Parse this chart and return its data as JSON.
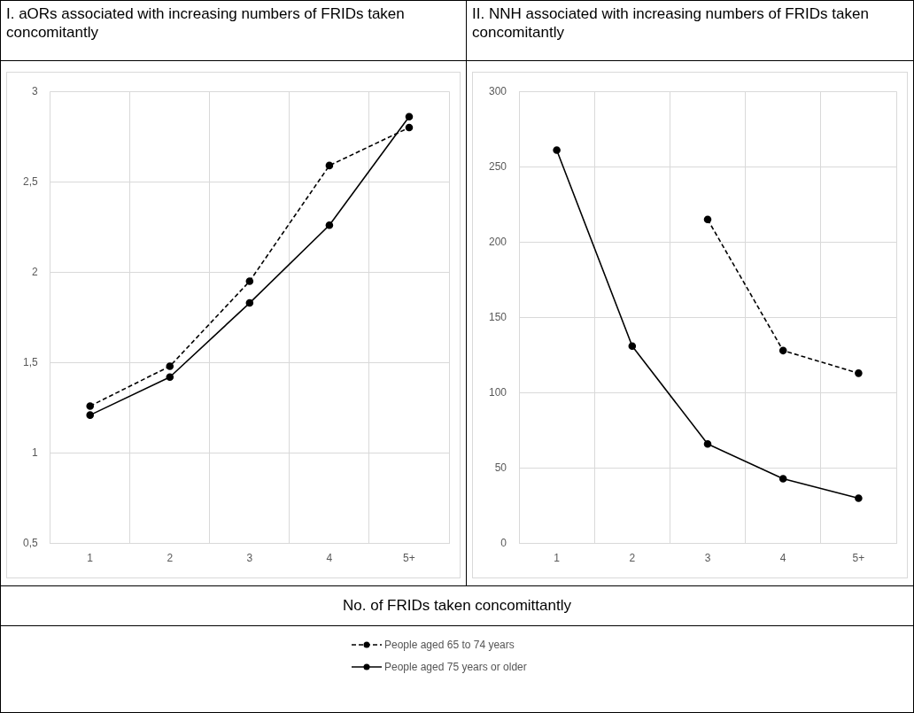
{
  "chart_data": [
    {
      "type": "line",
      "title": "I. aORs associated with increasing numbers of FRIDs taken concomitantly",
      "xlabel": "No. of FRIDs taken concomittantly",
      "categories": [
        "1",
        "2",
        "3",
        "4",
        "5+"
      ],
      "ylim": [
        0.5,
        3
      ],
      "yticks": [
        {
          "value": 0.5,
          "label": "0,5"
        },
        1,
        {
          "value": 1.5,
          "label": "1,5"
        },
        2,
        {
          "value": 2.5,
          "label": "2,5"
        },
        3
      ],
      "grid": true,
      "marker": "circle",
      "legend": "bottom",
      "series": [
        {
          "name": "People aged 65 to 74 years",
          "color": "#000000",
          "line_style": "dashed",
          "values": [
            1.26,
            1.48,
            1.95,
            2.59,
            2.8
          ]
        },
        {
          "name": "People aged 75 years or older",
          "color": "#000000",
          "line_style": "solid",
          "values": [
            1.21,
            1.42,
            1.83,
            2.26,
            2.86
          ]
        }
      ]
    },
    {
      "type": "line",
      "title": "II. NNH associated with increasing numbers of FRIDs taken concomitantly",
      "categories": [
        "1",
        "2",
        "3",
        "4",
        "5+"
      ],
      "ylim": [
        0,
        300
      ],
      "yticks": [
        0,
        50,
        100,
        150,
        200,
        250,
        300
      ],
      "grid": true,
      "marker": "circle",
      "series": [
        {
          "color": "#000000",
          "line_style": "dashed",
          "values": [
            null,
            null,
            215,
            128,
            113
          ]
        },
        {
          "color": "#000000",
          "line_style": "solid",
          "values": [
            261,
            131,
            66,
            43,
            30
          ]
        }
      ]
    }
  ]
}
